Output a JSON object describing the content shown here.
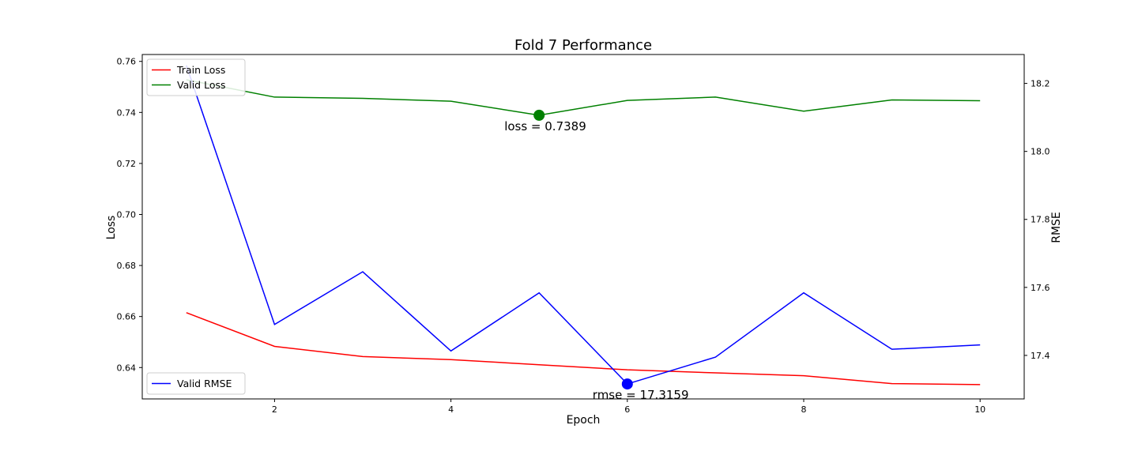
{
  "chart_data": {
    "type": "line",
    "title": "Fold 7 Performance",
    "xlabel": "Epoch",
    "ylabel_left": "Loss",
    "ylabel_right": "RMSE",
    "x": [
      1,
      2,
      3,
      4,
      5,
      6,
      7,
      8,
      9,
      10
    ],
    "xlim": [
      0.5,
      10.5
    ],
    "xticks": [
      2,
      4,
      6,
      8,
      10
    ],
    "ylim_left": [
      0.6277,
      0.7627
    ],
    "yticks_left": [
      0.64,
      0.66,
      0.68,
      0.7,
      0.72,
      0.74,
      0.76
    ],
    "ylim_right": [
      17.272,
      18.285
    ],
    "yticks_right": [
      17.4,
      17.6,
      17.8,
      18.0,
      18.2
    ],
    "grid": false,
    "series": [
      {
        "name": "Train Loss",
        "axis": "left",
        "color": "#ff0000",
        "values": [
          0.6615,
          0.6483,
          0.6443,
          0.6431,
          0.6411,
          0.6391,
          0.6379,
          0.6368,
          0.6337,
          0.6333
        ]
      },
      {
        "name": "Valid Loss",
        "axis": "left",
        "color": "#008000",
        "values": [
          0.7528,
          0.746,
          0.7455,
          0.7444,
          0.7389,
          0.7447,
          0.746,
          0.7405,
          0.7449,
          0.7446
        ]
      },
      {
        "name": "Valid RMSE",
        "axis": "right",
        "color": "#0000ff",
        "values": [
          18.253,
          17.491,
          17.646,
          17.413,
          17.584,
          17.316,
          17.395,
          17.584,
          17.418,
          17.431
        ]
      }
    ],
    "annotations": [
      {
        "text": "loss = 0.7389",
        "x": 5,
        "y": 0.7389,
        "axis": "left",
        "color": "#008000"
      },
      {
        "text": "rmse = 17.3159",
        "x": 6,
        "y": 17.3159,
        "axis": "right",
        "color": "#0000ff"
      }
    ],
    "legends": [
      {
        "placement": "upper left",
        "entries": [
          "Train Loss",
          "Valid Loss"
        ]
      },
      {
        "placement": "lower left",
        "entries": [
          "Valid RMSE"
        ]
      }
    ]
  }
}
